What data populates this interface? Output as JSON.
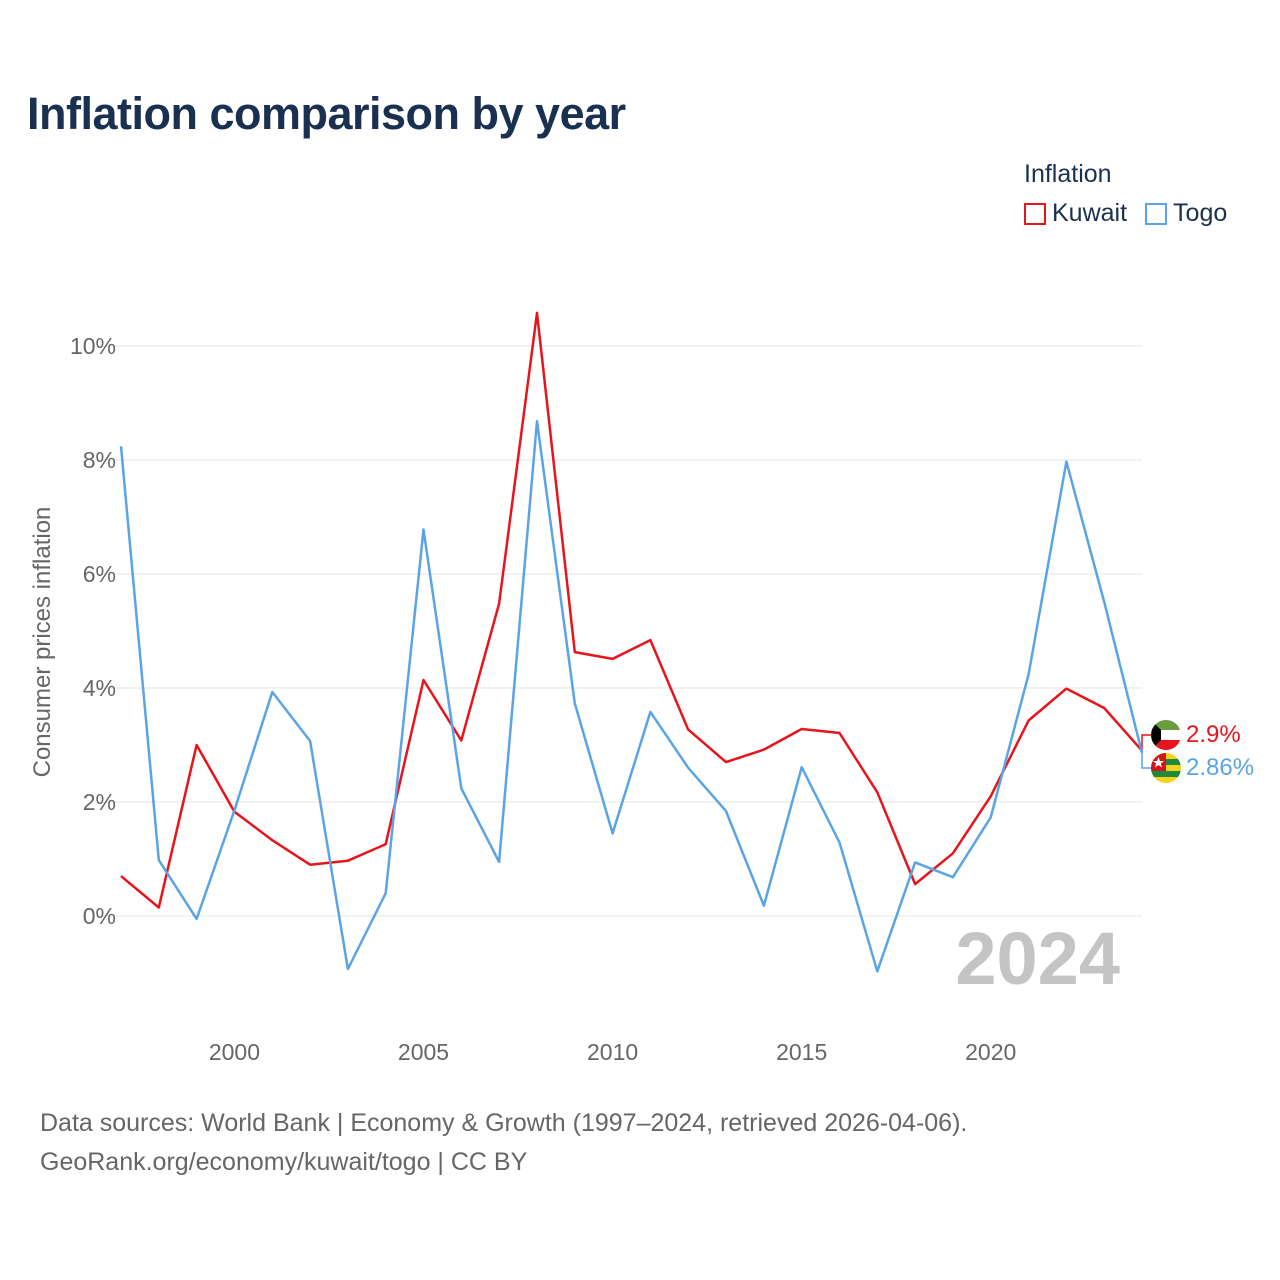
{
  "title": "Inflation comparison by year",
  "legend": {
    "title": "Inflation",
    "items": [
      {
        "label": "Kuwait",
        "color": "#e8141c"
      },
      {
        "label": "Togo",
        "color": "#5aa4e6"
      }
    ]
  },
  "source": {
    "line1": "Data sources: World Bank | Economy & Growth (1997–2024, retrieved 2026-04-06).",
    "line2": "GeoRank.org/economy/kuwait/togo | CC BY"
  },
  "chart_data": {
    "type": "line",
    "title": "Inflation comparison by year",
    "xlabel": "",
    "ylabel": "Consumer prices inflation",
    "xlim": [
      1997,
      2024
    ],
    "ylim": [
      -1.6,
      10.6
    ],
    "grid": true,
    "legend_position": "top-right",
    "x_ticks": [
      2000,
      2005,
      2010,
      2015,
      2020
    ],
    "y_ticks": [
      0,
      2,
      4,
      6,
      8,
      10
    ],
    "y_tick_labels": [
      "0%",
      "2%",
      "4%",
      "6%",
      "8%",
      "10%"
    ],
    "watermark_year": "2024",
    "x": [
      1997,
      1998,
      1999,
      2000,
      2001,
      2002,
      2003,
      2004,
      2005,
      2006,
      2007,
      2008,
      2009,
      2010,
      2011,
      2012,
      2013,
      2014,
      2015,
      2016,
      2017,
      2018,
      2019,
      2020,
      2021,
      2022,
      2023,
      2024
    ],
    "series": [
      {
        "name": "Kuwait",
        "color": "#e8141c",
        "end_label": "2.9%",
        "flag": "kuwait-flag",
        "values": [
          0.7,
          0.15,
          3.0,
          1.83,
          1.33,
          0.9,
          0.97,
          1.26,
          4.14,
          3.08,
          5.48,
          10.58,
          4.63,
          4.51,
          4.84,
          3.27,
          2.7,
          2.92,
          3.28,
          3.21,
          2.17,
          0.56,
          1.1,
          2.1,
          3.43,
          3.99,
          3.65,
          2.9
        ]
      },
      {
        "name": "Togo",
        "color": "#5aa4e6",
        "end_label": "2.86%",
        "flag": "togo-flag",
        "values": [
          8.24,
          0.98,
          -0.05,
          1.85,
          3.93,
          3.07,
          -0.93,
          0.4,
          6.78,
          2.24,
          0.95,
          8.68,
          3.73,
          1.45,
          3.58,
          2.6,
          1.84,
          0.18,
          2.61,
          1.29,
          -0.97,
          0.94,
          0.68,
          1.73,
          4.24,
          7.97,
          5.51,
          2.86
        ]
      }
    ]
  }
}
